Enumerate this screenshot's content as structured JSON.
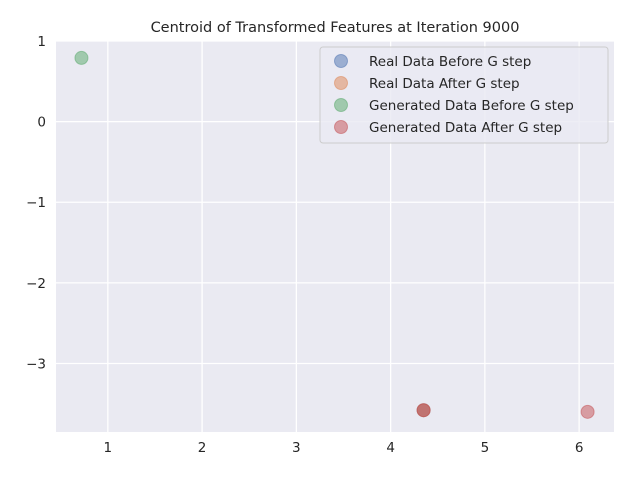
{
  "chart_data": {
    "type": "scatter",
    "title": "Centroid of Transformed Features at Iteration 9000",
    "xlabel": "",
    "ylabel": "",
    "xlim": [
      0.45,
      6.37
    ],
    "ylim": [
      -3.85,
      1.0
    ],
    "xticks": [
      1,
      2,
      3,
      4,
      5,
      6
    ],
    "yticks": [
      1,
      0,
      -1,
      -2,
      -3
    ],
    "ytick_labels": [
      "1",
      "0",
      "−1",
      "−2",
      "−3"
    ],
    "grid": true,
    "legend_position": "top-right",
    "series": [
      {
        "name": "Real Data Before G step",
        "color": "#4c72b0",
        "points": [
          [
            4.35,
            -3.58
          ]
        ]
      },
      {
        "name": "Real Data After G step",
        "color": "#dd8452",
        "points": [
          [
            4.35,
            -3.58
          ]
        ]
      },
      {
        "name": "Generated Data Before G step",
        "color": "#55a868",
        "points": [
          [
            0.72,
            0.79
          ]
        ]
      },
      {
        "name": "Generated Data After G step",
        "color": "#c44e52",
        "points": [
          [
            4.35,
            -3.58
          ],
          [
            6.09,
            -3.6
          ]
        ]
      }
    ]
  }
}
